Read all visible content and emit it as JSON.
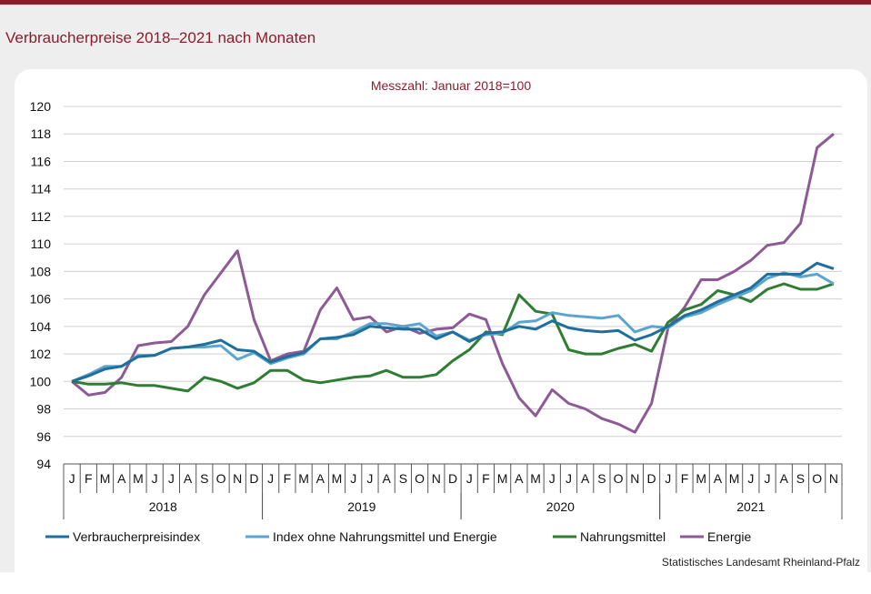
{
  "title": "Verbraucherpreise 2018–2021 nach Monaten",
  "subtitle": "Messzahl:  Januar  2018=100",
  "source": "Statistisches Landesamt  Rheinland-Pfalz",
  "colors": {
    "accent": "#8c1c2c"
  },
  "chart_data": {
    "type": "line",
    "ylim": [
      94,
      120
    ],
    "y_ticks": [
      94,
      96,
      98,
      100,
      102,
      104,
      106,
      108,
      110,
      112,
      114,
      116,
      118,
      120
    ],
    "month_labels": [
      "J",
      "F",
      "M",
      "A",
      "M",
      "J",
      "J",
      "A",
      "S",
      "O",
      "N",
      "D",
      "J",
      "F",
      "M",
      "A",
      "M",
      "J",
      "J",
      "A",
      "S",
      "O",
      "N",
      "D",
      "J",
      "F",
      "M",
      "A",
      "M",
      "J",
      "J",
      "A",
      "S",
      "O",
      "N",
      "D",
      "J",
      "F",
      "M",
      "A",
      "M",
      "J",
      "J",
      "A",
      "S",
      "O",
      "N"
    ],
    "years": [
      {
        "label": "2018",
        "start": 0,
        "end": 11
      },
      {
        "label": "2019",
        "start": 12,
        "end": 23
      },
      {
        "label": "2020",
        "start": 24,
        "end": 35
      },
      {
        "label": "2021",
        "start": 36,
        "end": 46
      }
    ],
    "series": [
      {
        "name": "Verbraucherpreisindex",
        "color": "#1f6e9c",
        "values": [
          100.0,
          100.4,
          100.9,
          101.1,
          101.8,
          101.9,
          102.4,
          102.5,
          102.7,
          103.0,
          102.3,
          102.2,
          101.4,
          101.8,
          102.1,
          103.1,
          103.2,
          103.4,
          104.0,
          103.9,
          103.8,
          103.8,
          103.1,
          103.6,
          102.9,
          103.5,
          103.6,
          104.0,
          103.8,
          104.4,
          103.9,
          103.7,
          103.6,
          103.7,
          103.0,
          103.4,
          104.0,
          104.8,
          105.2,
          105.8,
          106.3,
          106.8,
          107.8,
          107.8,
          107.8,
          108.6,
          108.2
        ]
      },
      {
        "name": "Index ohne Nahrungsmittel und Energie",
        "color": "#5aa5cf",
        "values": [
          100.0,
          100.5,
          101.1,
          101.1,
          101.9,
          101.9,
          102.4,
          102.5,
          102.5,
          102.6,
          101.6,
          102.1,
          101.3,
          101.7,
          102.0,
          103.1,
          103.1,
          103.6,
          104.2,
          104.2,
          104.0,
          104.2,
          103.3,
          103.6,
          103.0,
          103.4,
          103.5,
          104.3,
          104.4,
          105.0,
          104.8,
          104.7,
          104.6,
          104.8,
          103.6,
          104.0,
          103.9,
          104.7,
          105.0,
          105.6,
          106.1,
          106.6,
          107.5,
          107.9,
          107.6,
          107.8,
          107.1
        ]
      },
      {
        "name": "Nahrungsmittel",
        "color": "#2e7d32",
        "values": [
          100.0,
          99.8,
          99.8,
          99.9,
          99.7,
          99.7,
          99.5,
          99.3,
          100.3,
          100.0,
          99.5,
          99.9,
          100.8,
          100.8,
          100.1,
          99.9,
          100.1,
          100.3,
          100.4,
          100.8,
          100.3,
          100.3,
          100.5,
          101.5,
          102.3,
          103.6,
          103.4,
          106.3,
          105.1,
          104.9,
          102.3,
          102.0,
          102.0,
          102.4,
          102.7,
          102.2,
          104.3,
          105.2,
          105.6,
          106.6,
          106.3,
          105.8,
          106.7,
          107.1,
          106.7,
          106.7,
          107.1
        ]
      },
      {
        "name": "Energie",
        "color": "#8e5a96",
        "values": [
          100.0,
          99.0,
          99.2,
          100.3,
          102.6,
          102.8,
          102.9,
          104.0,
          106.3,
          107.9,
          109.5,
          104.5,
          101.5,
          102.0,
          102.2,
          105.2,
          106.8,
          104.5,
          104.7,
          103.6,
          104.0,
          103.5,
          103.8,
          103.9,
          104.9,
          104.5,
          101.3,
          98.8,
          97.5,
          99.4,
          98.4,
          98.0,
          97.3,
          96.9,
          96.3,
          98.4,
          103.9,
          105.4,
          107.4,
          107.4,
          108.0,
          108.8,
          109.9,
          110.1,
          111.5,
          117.0,
          118.0
        ]
      }
    ]
  }
}
